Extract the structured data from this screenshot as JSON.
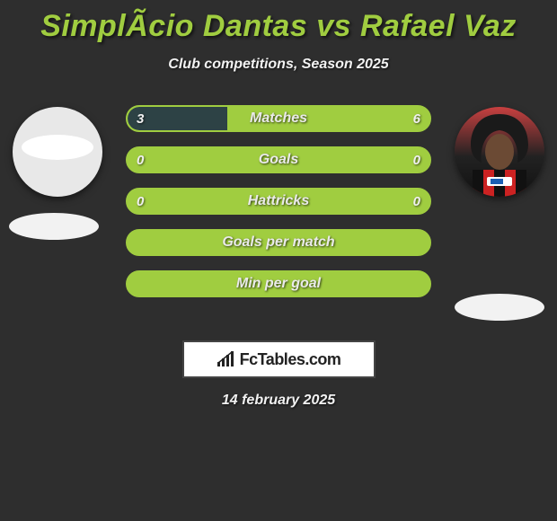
{
  "title": "SimplÃ­cio Dantas vs Rafael Vaz",
  "subtitle": "Club competitions, Season 2025",
  "date": "14 february 2025",
  "brand": "FcTables.com",
  "colors": {
    "background": "#2e2e2e",
    "accent_green": "#a0cd40",
    "bar_dark": "#2d4245",
    "text_light": "#f2f2f2"
  },
  "left_player": {
    "name": "SimplÃ­cio Dantas",
    "has_photo": false
  },
  "right_player": {
    "name": "Rafael Vaz",
    "has_photo": true
  },
  "stats": [
    {
      "label": "Matches",
      "left_value": "3",
      "right_value": "6",
      "left_fill_pct": 33,
      "right_fill_pct": 0
    },
    {
      "label": "Goals",
      "left_value": "0",
      "right_value": "0",
      "left_fill_pct": 0,
      "right_fill_pct": 0
    },
    {
      "label": "Hattricks",
      "left_value": "0",
      "right_value": "0",
      "left_fill_pct": 0,
      "right_fill_pct": 0
    },
    {
      "label": "Goals per match",
      "left_value": "",
      "right_value": "",
      "left_fill_pct": 0,
      "right_fill_pct": 0
    },
    {
      "label": "Min per goal",
      "left_value": "",
      "right_value": "",
      "left_fill_pct": 0,
      "right_fill_pct": 0
    }
  ]
}
